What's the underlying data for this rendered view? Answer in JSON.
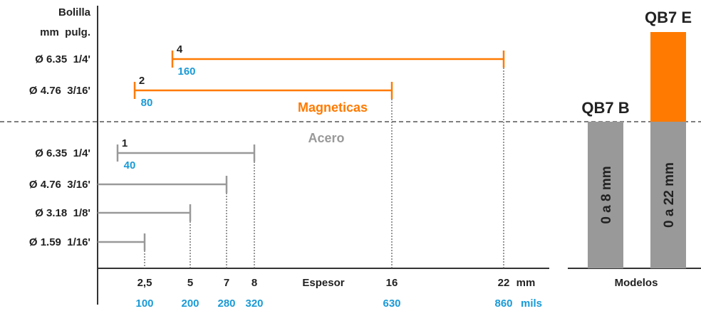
{
  "chart_data": {
    "type": "range-bar",
    "headers": {
      "line1": "Bolilla",
      "line2": "mm  pulg."
    },
    "section_labels": {
      "magnetic": "Magneticas",
      "steel": "Acero"
    },
    "x_axis": {
      "title": "Espesor",
      "mm_unit": "mm",
      "mils_unit": "mils",
      "ticks": [
        {
          "mm": 2.5,
          "mm_label": "2,5",
          "mils_label": "100"
        },
        {
          "mm": 5,
          "mm_label": "5",
          "mils_label": "200"
        },
        {
          "mm": 7,
          "mm_label": "7",
          "mils_label": "280"
        },
        {
          "mm": 8,
          "mm_label": "8",
          "mils_label": "320"
        },
        {
          "mm": 16,
          "mm_label": "16",
          "mils_label": "630"
        },
        {
          "mm": 22,
          "mm_label": "22",
          "mils_label": "860"
        }
      ]
    },
    "magnetic_rows": [
      {
        "ball": "Ø 6.35  1/4'",
        "start_mm": 4,
        "end_mm": 22,
        "start_label": "4",
        "mils_label": "160"
      },
      {
        "ball": "Ø 4.76  3/16'",
        "start_mm": 2,
        "end_mm": 16,
        "start_label": "2",
        "mils_label": "80"
      }
    ],
    "steel_rows": [
      {
        "ball": "Ø 6.35  1/4'",
        "start_mm": 1,
        "end_mm": 8,
        "start_label": "1",
        "mils_label": "40"
      },
      {
        "ball": "Ø 4.76  3/16'",
        "start_mm": 0,
        "end_mm": 7
      },
      {
        "ball": "Ø 3.18  1/8'",
        "start_mm": 0,
        "end_mm": 5
      },
      {
        "ball": "Ø 1.59  1/16'",
        "start_mm": 0,
        "end_mm": 2.5
      }
    ],
    "models": {
      "title": "Modelos",
      "items": [
        {
          "name": "QB7 B",
          "range_label": "0 a 8 mm",
          "has_magnetic": false
        },
        {
          "name": "QB7 E",
          "range_label": "0 a 22 mm",
          "has_magnetic": true
        }
      ]
    },
    "colors": {
      "magnetic": "#ff7a00",
      "steel": "#999999",
      "mils": "#1a9ad6",
      "text": "#222222",
      "axis": "#333333"
    }
  }
}
